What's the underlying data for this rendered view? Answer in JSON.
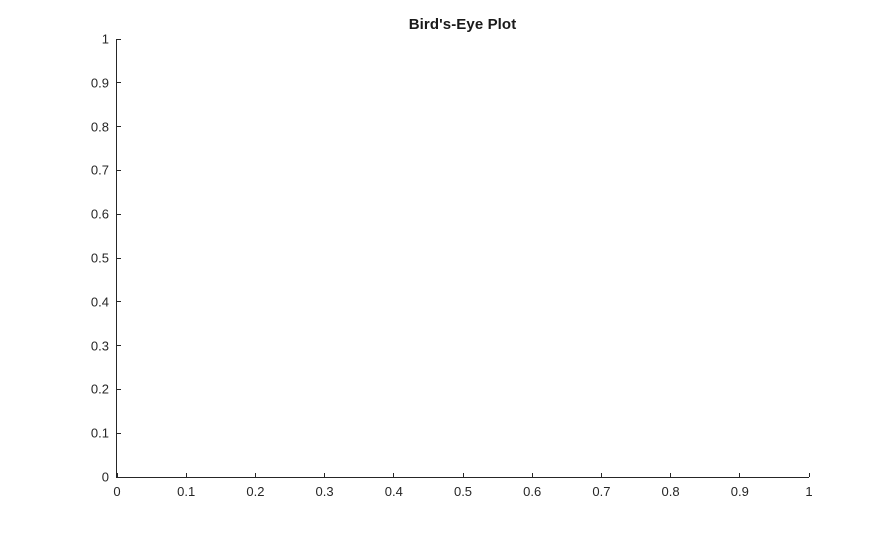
{
  "figure": {
    "background": "#ffffff"
  },
  "chart_data": {
    "type": "line",
    "title": "Bird's-Eye Plot",
    "xlabel": "",
    "ylabel": "",
    "xlim": [
      0,
      1
    ],
    "ylim": [
      0,
      1
    ],
    "xticks": [
      0,
      0.1,
      0.2,
      0.3,
      0.4,
      0.5,
      0.6,
      0.7,
      0.8,
      0.9,
      1
    ],
    "xtick_labels": [
      "0",
      "0.1",
      "0.2",
      "0.3",
      "0.4",
      "0.5",
      "0.6",
      "0.7",
      "0.8",
      "0.9",
      "1"
    ],
    "yticks": [
      0,
      0.1,
      0.2,
      0.3,
      0.4,
      0.5,
      0.6,
      0.7,
      0.8,
      0.9,
      1
    ],
    "ytick_labels": [
      "0",
      "0.1",
      "0.2",
      "0.3",
      "0.4",
      "0.5",
      "0.6",
      "0.7",
      "0.8",
      "0.9",
      "1"
    ],
    "series": [],
    "grid": false,
    "box": false,
    "legend_position": null,
    "axis_color": "#262626",
    "tick_label_color": "#262626",
    "title_color": "#1a1a1a"
  }
}
